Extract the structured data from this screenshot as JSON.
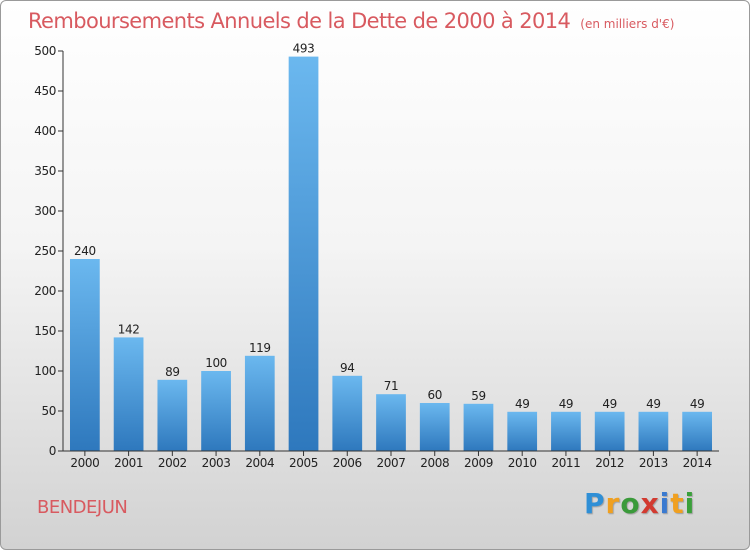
{
  "title": "Remboursements Annuels de la Dette de 2000 à 2014",
  "unit": "(en milliers d'€)",
  "commune": "BENDEJUN",
  "logo": {
    "letters": [
      "P",
      "r",
      "o",
      "x",
      "i",
      "t",
      "i"
    ],
    "colors": [
      "#2f8fd6",
      "#f0a020",
      "#3a9a3a",
      "#d23a30",
      "#3a7ad0",
      "#f0a020",
      "#3aa03a"
    ]
  },
  "colors": {
    "title": "#d85a60",
    "bar_light": "#6bb8ef",
    "bar_dark": "#2e78bd"
  },
  "chart_data": {
    "type": "bar",
    "categories": [
      "2000",
      "2001",
      "2002",
      "2003",
      "2004",
      "2005",
      "2006",
      "2007",
      "2008",
      "2009",
      "2010",
      "2011",
      "2012",
      "2013",
      "2014"
    ],
    "values": [
      240,
      142,
      89,
      100,
      119,
      493,
      94,
      71,
      60,
      59,
      49,
      49,
      49,
      49,
      49
    ],
    "ylim": [
      0,
      500
    ],
    "yticks": [
      0,
      50,
      100,
      150,
      200,
      250,
      300,
      350,
      400,
      450,
      500
    ],
    "grid": false,
    "legend": "none"
  }
}
